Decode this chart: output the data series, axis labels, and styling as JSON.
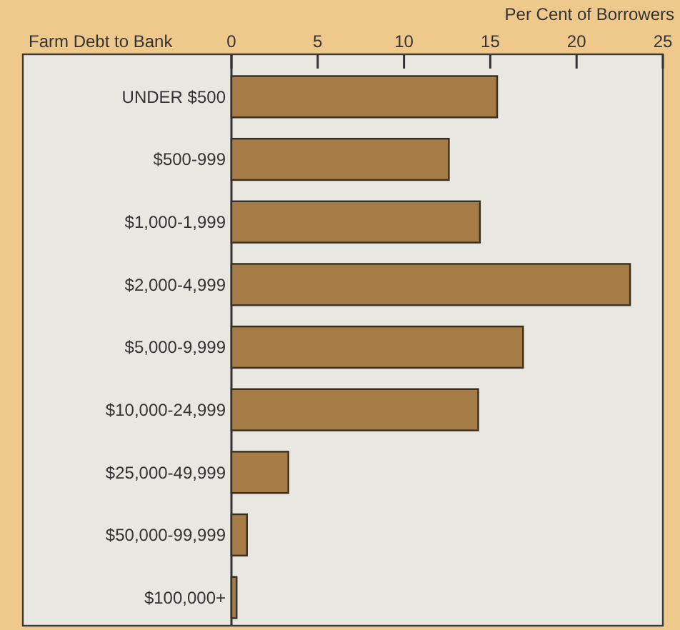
{
  "chart_data": {
    "type": "bar",
    "orientation": "horizontal",
    "ylabel": "Farm Debt to Bank",
    "xlabel": "Per Cent of Borrowers",
    "categories": [
      "UNDER $500",
      "$500-999",
      "$1,000-1,999",
      "$2,000-4,999",
      "$5,000-9,999",
      "$10,000-24,999",
      "$25,000-49,999",
      "$50,000-99,999",
      "$100,000+"
    ],
    "values": [
      15.4,
      12.6,
      14.4,
      23.1,
      16.9,
      14.3,
      3.3,
      0.9,
      0.3
    ],
    "color": "#a57c45",
    "xlim": [
      0,
      25
    ],
    "xticks": [
      0,
      5,
      10,
      15,
      20,
      25
    ],
    "grid": false
  }
}
